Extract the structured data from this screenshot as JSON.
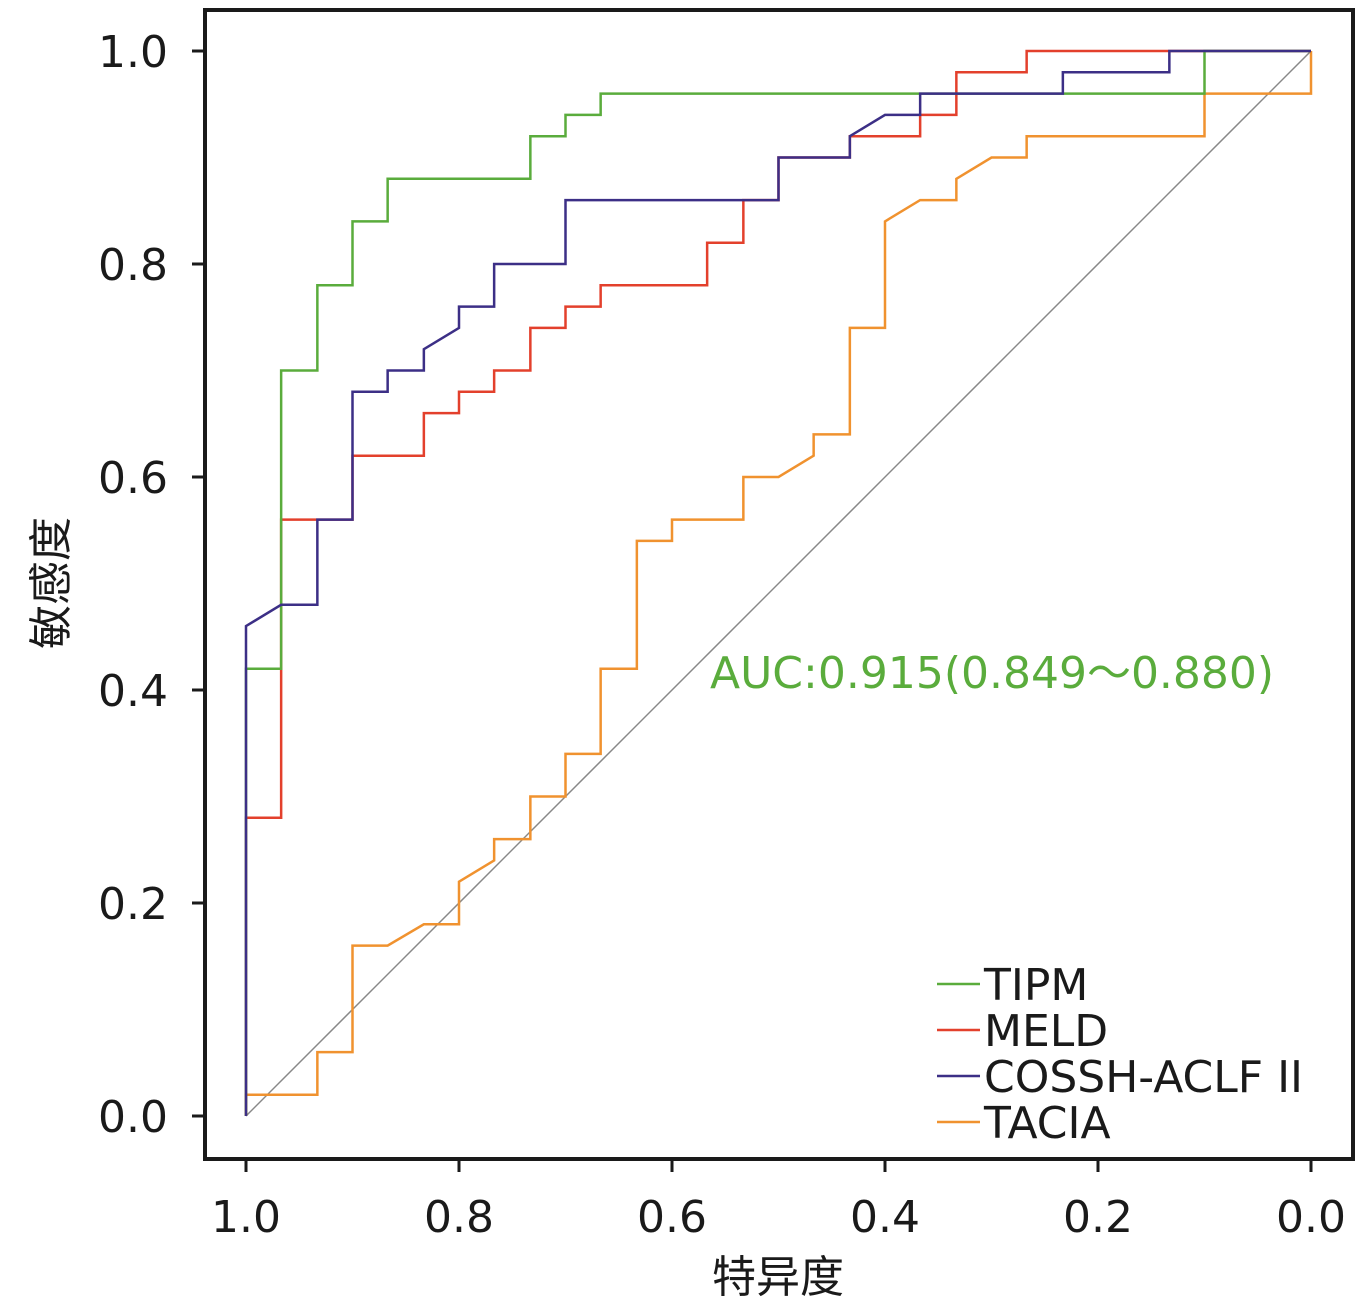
{
  "chart_data": {
    "type": "line",
    "title": "",
    "xlabel": "特异度",
    "ylabel": "敏感度",
    "xlim": [
      1.0,
      0.0
    ],
    "ylim": [
      0.0,
      1.0
    ],
    "xticks": [
      "1.0",
      "0.8",
      "0.6",
      "0.4",
      "0.2",
      "0.0"
    ],
    "xtick_values": [
      1.0,
      0.8,
      0.6,
      0.4,
      0.2,
      0.0
    ],
    "yticks": [
      "0.0",
      "0.2",
      "0.4",
      "0.6",
      "0.8",
      "1.0"
    ],
    "ytick_values": [
      0.0,
      0.2,
      0.4,
      0.6,
      0.8,
      1.0
    ],
    "grid": false,
    "legend_position": "bottom-right",
    "annotation": {
      "text": "AUC:0.915(0.849～0.880)",
      "color": "#5aac3c"
    },
    "reference_line": {
      "from": [
        1,
        0
      ],
      "to": [
        0,
        1
      ],
      "color": "#888888"
    },
    "series": [
      {
        "name": "TIPM",
        "color": "#5aac3c",
        "points": [
          [
            1,
            0
          ],
          [
            1,
            0.42
          ],
          [
            0.967,
            0.42
          ],
          [
            0.967,
            0.7
          ],
          [
            0.933,
            0.7
          ],
          [
            0.933,
            0.78
          ],
          [
            0.9,
            0.78
          ],
          [
            0.9,
            0.84
          ],
          [
            0.867,
            0.84
          ],
          [
            0.867,
            0.88
          ],
          [
            0.733,
            0.88
          ],
          [
            0.733,
            0.92
          ],
          [
            0.7,
            0.92
          ],
          [
            0.7,
            0.94
          ],
          [
            0.667,
            0.94
          ],
          [
            0.667,
            0.96
          ],
          [
            0.1,
            0.96
          ],
          [
            0.1,
            1.0
          ],
          [
            0,
            1.0
          ]
        ]
      },
      {
        "name": "MELD",
        "color": "#e3402c",
        "points": [
          [
            1,
            0
          ],
          [
            1,
            0.28
          ],
          [
            0.967,
            0.28
          ],
          [
            0.967,
            0.56
          ],
          [
            0.9,
            0.56
          ],
          [
            0.9,
            0.62
          ],
          [
            0.833,
            0.62
          ],
          [
            0.833,
            0.66
          ],
          [
            0.8,
            0.66
          ],
          [
            0.8,
            0.68
          ],
          [
            0.767,
            0.68
          ],
          [
            0.767,
            0.7
          ],
          [
            0.733,
            0.7
          ],
          [
            0.733,
            0.74
          ],
          [
            0.7,
            0.74
          ],
          [
            0.7,
            0.76
          ],
          [
            0.667,
            0.76
          ],
          [
            0.667,
            0.78
          ],
          [
            0.567,
            0.78
          ],
          [
            0.567,
            0.82
          ],
          [
            0.533,
            0.82
          ],
          [
            0.533,
            0.86
          ],
          [
            0.5,
            0.86
          ],
          [
            0.5,
            0.9
          ],
          [
            0.433,
            0.9
          ],
          [
            0.433,
            0.92
          ],
          [
            0.367,
            0.92
          ],
          [
            0.367,
            0.94
          ],
          [
            0.333,
            0.94
          ],
          [
            0.333,
            0.98
          ],
          [
            0.267,
            0.98
          ],
          [
            0.267,
            1.0
          ],
          [
            0,
            1.0
          ]
        ]
      },
      {
        "name": "COSSH-ACLF II",
        "color": "#3c2f86",
        "points": [
          [
            1,
            0
          ],
          [
            1,
            0.46
          ],
          [
            0.967,
            0.48
          ],
          [
            0.933,
            0.48
          ],
          [
            0.933,
            0.56
          ],
          [
            0.9,
            0.56
          ],
          [
            0.9,
            0.68
          ],
          [
            0.867,
            0.68
          ],
          [
            0.867,
            0.7
          ],
          [
            0.833,
            0.7
          ],
          [
            0.833,
            0.72
          ],
          [
            0.8,
            0.74
          ],
          [
            0.8,
            0.76
          ],
          [
            0.767,
            0.76
          ],
          [
            0.767,
            0.8
          ],
          [
            0.7,
            0.8
          ],
          [
            0.7,
            0.86
          ],
          [
            0.5,
            0.86
          ],
          [
            0.5,
            0.9
          ],
          [
            0.433,
            0.9
          ],
          [
            0.433,
            0.92
          ],
          [
            0.4,
            0.94
          ],
          [
            0.367,
            0.94
          ],
          [
            0.367,
            0.96
          ],
          [
            0.233,
            0.96
          ],
          [
            0.233,
            0.98
          ],
          [
            0.133,
            0.98
          ],
          [
            0.133,
            1.0
          ],
          [
            0,
            1.0
          ]
        ]
      },
      {
        "name": "TACIA",
        "color": "#f0922f",
        "points": [
          [
            1,
            0
          ],
          [
            1,
            0.02
          ],
          [
            0.933,
            0.02
          ],
          [
            0.933,
            0.06
          ],
          [
            0.9,
            0.06
          ],
          [
            0.9,
            0.16
          ],
          [
            0.867,
            0.16
          ],
          [
            0.833,
            0.18
          ],
          [
            0.8,
            0.18
          ],
          [
            0.8,
            0.22
          ],
          [
            0.767,
            0.24
          ],
          [
            0.767,
            0.26
          ],
          [
            0.733,
            0.26
          ],
          [
            0.733,
            0.3
          ],
          [
            0.7,
            0.3
          ],
          [
            0.7,
            0.34
          ],
          [
            0.667,
            0.34
          ],
          [
            0.667,
            0.42
          ],
          [
            0.633,
            0.42
          ],
          [
            0.633,
            0.54
          ],
          [
            0.6,
            0.54
          ],
          [
            0.6,
            0.56
          ],
          [
            0.533,
            0.56
          ],
          [
            0.533,
            0.6
          ],
          [
            0.5,
            0.6
          ],
          [
            0.467,
            0.62
          ],
          [
            0.467,
            0.64
          ],
          [
            0.433,
            0.64
          ],
          [
            0.433,
            0.74
          ],
          [
            0.4,
            0.74
          ],
          [
            0.4,
            0.84
          ],
          [
            0.367,
            0.86
          ],
          [
            0.333,
            0.86
          ],
          [
            0.333,
            0.88
          ],
          [
            0.3,
            0.9
          ],
          [
            0.267,
            0.9
          ],
          [
            0.267,
            0.92
          ],
          [
            0.1,
            0.92
          ],
          [
            0.1,
            0.96
          ],
          [
            0,
            0.96
          ],
          [
            0,
            1.0
          ]
        ]
      }
    ]
  }
}
